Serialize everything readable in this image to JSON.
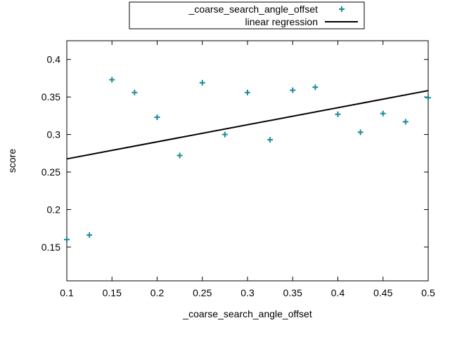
{
  "chart_data": {
    "type": "scatter",
    "xlabel": "_coarse_search_angle_offset",
    "ylabel": "score",
    "xlim": [
      0.1,
      0.5
    ],
    "ylim": [
      0.105,
      0.425
    ],
    "x_ticks": [
      0.1,
      0.15,
      0.2,
      0.25,
      0.3,
      0.35,
      0.4,
      0.45,
      0.5
    ],
    "x_tick_labels": [
      "0.1",
      "0.15",
      "0.2",
      "0.25",
      "0.3",
      "0.35",
      "0.4",
      "0.45",
      "0.5"
    ],
    "y_ticks": [
      0.15,
      0.2,
      0.25,
      0.3,
      0.35,
      0.4
    ],
    "y_tick_labels": [
      "0.15",
      "0.2",
      "0.25",
      "0.3",
      "0.35",
      "0.4"
    ],
    "grid": false,
    "legend_position": "top-center-outside",
    "series": [
      {
        "name": "_coarse_search_angle_offset",
        "kind": "points",
        "marker": "plus",
        "color": "#1a8a9a",
        "points": [
          {
            "x": 0.1,
            "y": 0.16
          },
          {
            "x": 0.125,
            "y": 0.166
          },
          {
            "x": 0.15,
            "y": 0.373
          },
          {
            "x": 0.175,
            "y": 0.356
          },
          {
            "x": 0.2,
            "y": 0.323
          },
          {
            "x": 0.225,
            "y": 0.272
          },
          {
            "x": 0.25,
            "y": 0.369
          },
          {
            "x": 0.275,
            "y": 0.3
          },
          {
            "x": 0.3,
            "y": 0.356
          },
          {
            "x": 0.325,
            "y": 0.293
          },
          {
            "x": 0.35,
            "y": 0.359
          },
          {
            "x": 0.375,
            "y": 0.363
          },
          {
            "x": 0.4,
            "y": 0.327
          },
          {
            "x": 0.425,
            "y": 0.303
          },
          {
            "x": 0.45,
            "y": 0.328
          },
          {
            "x": 0.475,
            "y": 0.317
          },
          {
            "x": 0.5,
            "y": 0.349
          }
        ]
      },
      {
        "name": "linear regression",
        "kind": "line",
        "color": "#000000",
        "points": [
          {
            "x": 0.1,
            "y": 0.2675
          },
          {
            "x": 0.5,
            "y": 0.3585
          }
        ]
      }
    ]
  }
}
